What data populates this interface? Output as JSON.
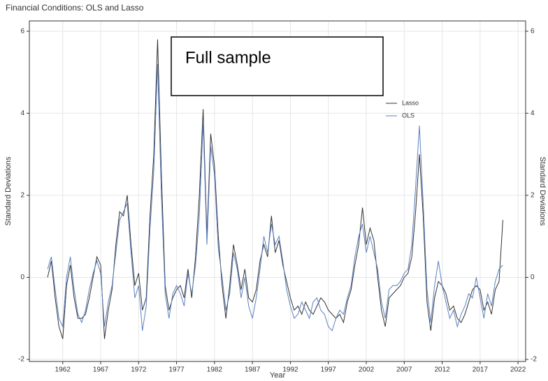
{
  "chart_data": {
    "type": "line",
    "title": "Financial Conditions: OLS and Lasso",
    "x_label": "Year",
    "y_label": "Standard Deviations",
    "y2_label": "Standard Deviations",
    "annotation": "Full sample",
    "legend": "upper right",
    "grid": true,
    "xlim": [
      1957.6,
      2023.0
    ],
    "xticks": [
      1962,
      1967,
      1972,
      1977,
      1982,
      1987,
      1992,
      1997,
      2002,
      2007,
      2012,
      2017,
      2022
    ],
    "ylim": [
      -2.05,
      6.25
    ],
    "yticks": [
      -2,
      0,
      2,
      4,
      6
    ],
    "y2lim": [
      -2.05,
      6.25
    ],
    "y2ticks": [
      -2,
      0,
      2,
      4,
      6
    ],
    "x": [
      1960.0,
      1960.5,
      1961.0,
      1961.5,
      1962.0,
      1962.5,
      1963.0,
      1963.5,
      1964.0,
      1964.5,
      1965.0,
      1965.5,
      1966.0,
      1966.5,
      1967.0,
      1967.5,
      1968.0,
      1968.5,
      1969.0,
      1969.5,
      1970.0,
      1970.5,
      1971.0,
      1971.5,
      1972.0,
      1972.5,
      1973.0,
      1973.5,
      1974.0,
      1974.5,
      1975.0,
      1975.5,
      1976.0,
      1976.5,
      1977.0,
      1977.5,
      1978.0,
      1978.5,
      1979.0,
      1979.5,
      1980.0,
      1980.5,
      1981.0,
      1981.5,
      1982.0,
      1982.5,
      1983.0,
      1983.5,
      1984.0,
      1984.5,
      1985.0,
      1985.5,
      1986.0,
      1986.5,
      1987.0,
      1987.5,
      1988.0,
      1988.5,
      1989.0,
      1989.5,
      1990.0,
      1990.5,
      1991.0,
      1991.5,
      1992.0,
      1992.5,
      1993.0,
      1993.5,
      1994.0,
      1994.5,
      1995.0,
      1995.5,
      1996.0,
      1996.5,
      1997.0,
      1997.5,
      1998.0,
      1998.5,
      1999.0,
      1999.5,
      2000.0,
      2000.5,
      2001.0,
      2001.5,
      2002.0,
      2002.5,
      2003.0,
      2003.5,
      2004.0,
      2004.5,
      2005.0,
      2005.5,
      2006.0,
      2006.5,
      2007.0,
      2007.5,
      2008.0,
      2008.5,
      2009.0,
      2009.5,
      2010.0,
      2010.5,
      2011.0,
      2011.5,
      2012.0,
      2012.5,
      2013.0,
      2013.5,
      2014.0,
      2014.5,
      2015.0,
      2015.5,
      2016.0,
      2016.5,
      2017.0,
      2017.5,
      2018.0,
      2018.5,
      2019.0,
      2019.5,
      2020.0
    ],
    "series": [
      {
        "name": "Lasso",
        "color": "#333333",
        "values": [
          0.0,
          0.4,
          -0.5,
          -1.2,
          -1.5,
          -0.2,
          0.3,
          -0.5,
          -1.0,
          -1.0,
          -0.9,
          -0.5,
          0.0,
          0.5,
          0.3,
          -1.5,
          -0.8,
          -0.3,
          0.8,
          1.6,
          1.5,
          2.0,
          0.8,
          -0.2,
          0.1,
          -0.8,
          -0.5,
          1.5,
          3.0,
          5.8,
          2.5,
          -0.2,
          -0.8,
          -0.5,
          -0.3,
          -0.2,
          -0.5,
          0.2,
          -0.5,
          0.5,
          2.0,
          4.1,
          1.0,
          3.5,
          2.7,
          1.0,
          -0.2,
          -1.0,
          -0.2,
          0.8,
          0.3,
          -0.3,
          0.2,
          -0.5,
          -0.6,
          -0.3,
          0.4,
          0.8,
          0.5,
          1.5,
          0.6,
          0.9,
          0.3,
          -0.1,
          -0.5,
          -0.8,
          -0.7,
          -0.9,
          -0.6,
          -0.8,
          -0.9,
          -0.7,
          -0.5,
          -0.6,
          -0.8,
          -0.9,
          -1.0,
          -0.9,
          -1.1,
          -0.6,
          -0.3,
          0.3,
          0.8,
          1.7,
          0.8,
          1.2,
          0.9,
          0.0,
          -0.8,
          -1.2,
          -0.5,
          -0.4,
          -0.3,
          -0.2,
          0.0,
          0.1,
          0.5,
          1.6,
          3.0,
          1.5,
          -0.6,
          -1.3,
          -0.5,
          -0.1,
          -0.2,
          -0.4,
          -0.8,
          -0.7,
          -1.0,
          -1.1,
          -0.9,
          -0.6,
          -0.3,
          -0.2,
          -0.3,
          -0.8,
          -0.6,
          -0.9,
          -0.3,
          -0.1,
          1.4
        ]
      },
      {
        "name": "OLS",
        "color": "#5b80c0",
        "values": [
          0.2,
          0.5,
          -0.3,
          -1.0,
          -1.2,
          0.0,
          0.5,
          -0.3,
          -0.9,
          -1.1,
          -0.8,
          -0.3,
          0.1,
          0.4,
          0.1,
          -1.2,
          -0.6,
          -0.2,
          0.6,
          1.4,
          1.6,
          1.8,
          0.6,
          -0.5,
          -0.2,
          -1.3,
          -0.7,
          1.2,
          2.6,
          5.2,
          2.0,
          -0.4,
          -1.0,
          -0.4,
          -0.2,
          -0.4,
          -0.7,
          0.1,
          -0.4,
          0.3,
          1.5,
          3.8,
          0.8,
          3.2,
          2.5,
          0.7,
          0.0,
          -0.8,
          -0.4,
          0.6,
          0.2,
          -0.5,
          0.0,
          -0.7,
          -1.0,
          -0.5,
          0.2,
          1.0,
          0.6,
          1.3,
          0.8,
          1.0,
          0.4,
          -0.3,
          -0.7,
          -1.0,
          -0.9,
          -0.6,
          -0.8,
          -1.0,
          -0.6,
          -0.5,
          -0.8,
          -0.9,
          -1.2,
          -1.3,
          -1.0,
          -0.8,
          -0.9,
          -0.5,
          -0.2,
          0.5,
          1.0,
          1.3,
          0.6,
          1.0,
          0.6,
          0.2,
          -0.6,
          -1.0,
          -0.3,
          -0.2,
          -0.2,
          -0.1,
          0.1,
          0.2,
          0.8,
          2.2,
          3.7,
          1.8,
          -0.3,
          -1.1,
          -0.2,
          0.4,
          -0.2,
          -0.6,
          -1.0,
          -0.8,
          -1.2,
          -0.9,
          -0.7,
          -0.4,
          -0.5,
          0.0,
          -0.5,
          -1.0,
          -0.4,
          -0.7,
          -0.1,
          0.2,
          0.3
        ]
      }
    ]
  }
}
